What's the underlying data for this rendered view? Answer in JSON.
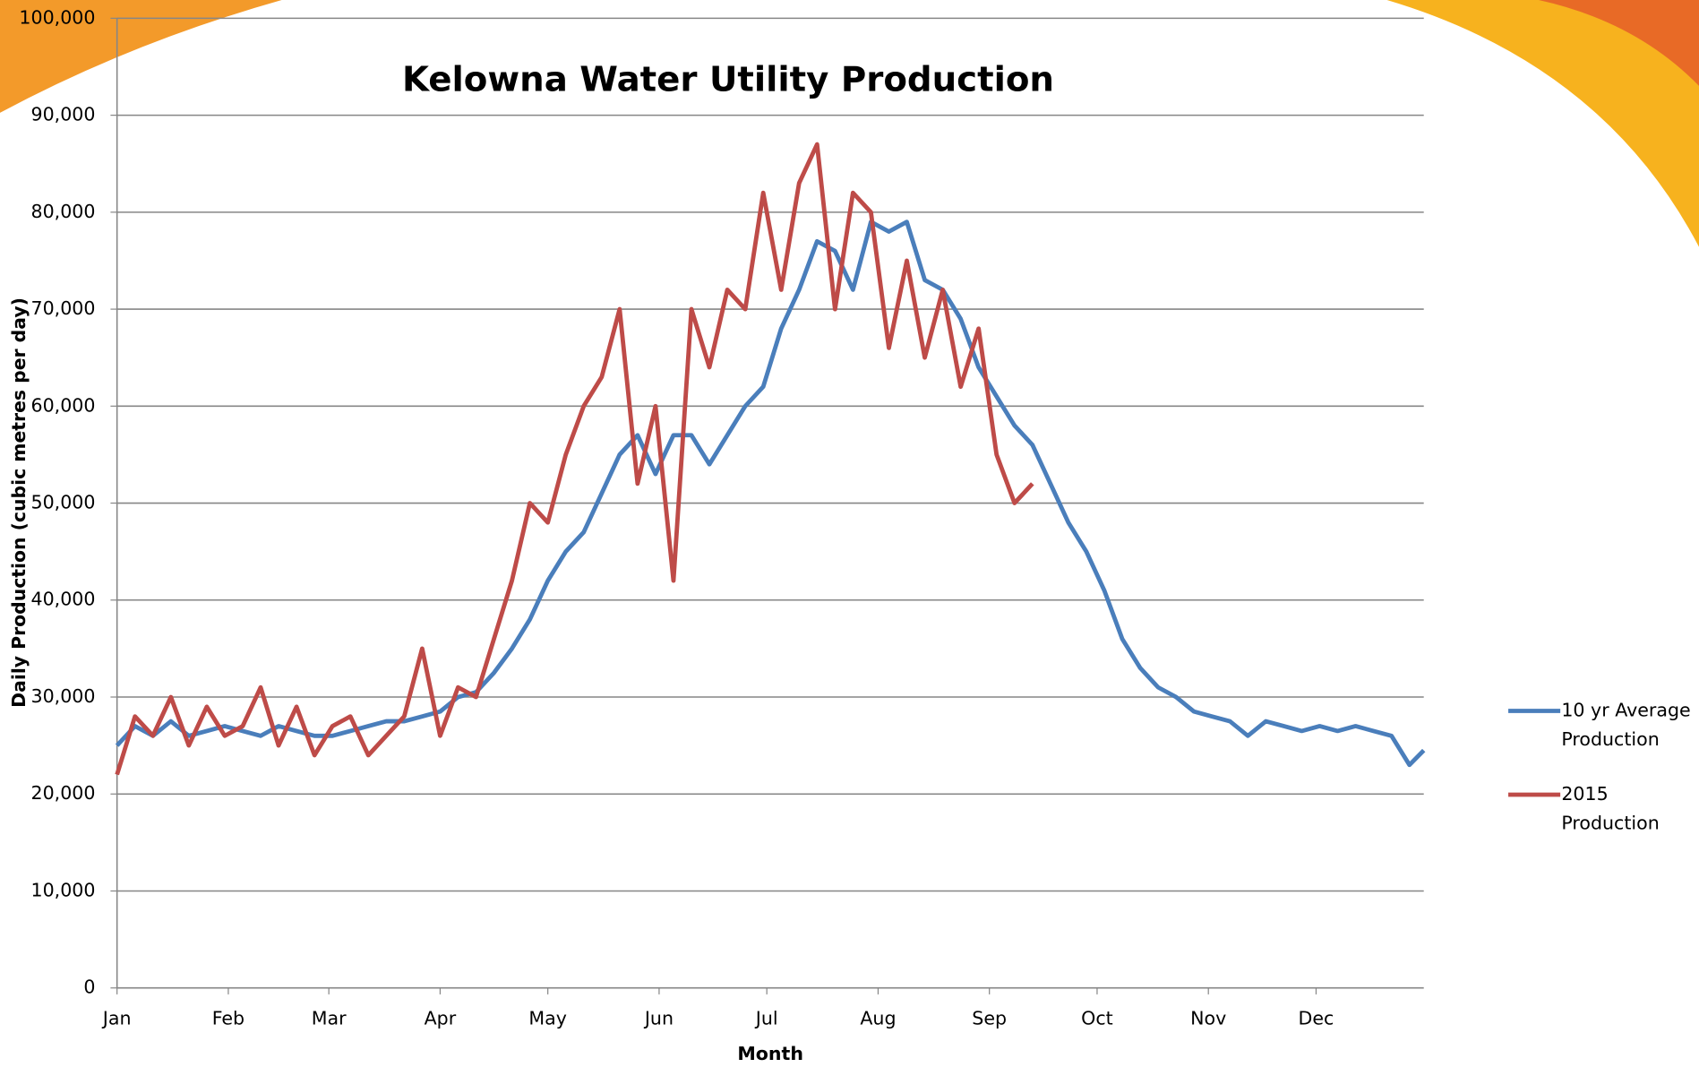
{
  "chart_data": {
    "type": "line",
    "title": "Kelowna Water Utility Production",
    "x_label": "Month",
    "y_label": "Daily Production (cubic metres per day)",
    "xlim": [
      0,
      364
    ],
    "xticks": [
      {
        "value": 0,
        "label": "Jan"
      },
      {
        "value": 31,
        "label": "Feb"
      },
      {
        "value": 59,
        "label": "Mar"
      },
      {
        "value": 90,
        "label": "Apr"
      },
      {
        "value": 120,
        "label": "May"
      },
      {
        "value": 151,
        "label": "Jun"
      },
      {
        "value": 181,
        "label": "Jul"
      },
      {
        "value": 212,
        "label": "Aug"
      },
      {
        "value": 243,
        "label": "Sep"
      },
      {
        "value": 273,
        "label": "Oct"
      },
      {
        "value": 304,
        "label": "Nov"
      },
      {
        "value": 334,
        "label": "Dec"
      }
    ],
    "ylim": [
      0,
      100000
    ],
    "yticks": [
      0,
      {
        "value": 10000,
        "label": "10,000"
      },
      {
        "value": 20000,
        "label": "20,000"
      },
      {
        "value": 30000,
        "label": "30,000"
      },
      {
        "value": 40000,
        "label": "40,000"
      },
      {
        "value": 50000,
        "label": "50,000"
      },
      {
        "value": 60000,
        "label": "60,000"
      },
      {
        "value": 70000,
        "label": "70,000"
      },
      {
        "value": 80000,
        "label": "80,000"
      },
      {
        "value": 90000,
        "label": "90,000"
      },
      {
        "value": 100000,
        "label": "100,000"
      }
    ],
    "grid": true,
    "legend": "right",
    "x": [
      0,
      5,
      10,
      15,
      20,
      25,
      30,
      35,
      40,
      45,
      50,
      55,
      60,
      65,
      70,
      75,
      80,
      85,
      90,
      95,
      100,
      105,
      110,
      115,
      120,
      125,
      130,
      135,
      140,
      145,
      150,
      155,
      160,
      165,
      170,
      175,
      180,
      185,
      190,
      195,
      200,
      205,
      210,
      215,
      220,
      225,
      230,
      235,
      240,
      245,
      250,
      255,
      260,
      265,
      270,
      275,
      280,
      285,
      290,
      295,
      300,
      305,
      310,
      315,
      320,
      325,
      330,
      335,
      340,
      345,
      350,
      355,
      360,
      364
    ],
    "series": [
      {
        "name": "10 yr Average Production",
        "color": "#4a7ebb",
        "values": [
          25000,
          27000,
          26000,
          27500,
          26000,
          26500,
          27000,
          26500,
          26000,
          27000,
          26500,
          26000,
          26000,
          26500,
          27000,
          27500,
          27500,
          28000,
          28500,
          30000,
          30500,
          32500,
          35000,
          38000,
          42000,
          45000,
          47000,
          51000,
          55000,
          57000,
          53000,
          57000,
          57000,
          54000,
          57000,
          60000,
          62000,
          68000,
          72000,
          77000,
          76000,
          72000,
          79000,
          78000,
          79000,
          73000,
          72000,
          69000,
          64000,
          61000,
          58000,
          56000,
          52000,
          48000,
          45000,
          41000,
          36000,
          33000,
          31000,
          30000,
          28500,
          28000,
          27500,
          26000,
          27500,
          27000,
          26500,
          27000,
          26500,
          27000,
          26500,
          26000,
          23000,
          24500
        ]
      },
      {
        "name": "2015 Production",
        "color": "#be4b48",
        "values": [
          22000,
          28000,
          26000,
          30000,
          25000,
          29000,
          26000,
          27000,
          31000,
          25000,
          29000,
          24000,
          27000,
          28000,
          24000,
          26000,
          28000,
          35000,
          26000,
          31000,
          30000,
          36000,
          42000,
          50000,
          48000,
          55000,
          60000,
          63000,
          70000,
          52000,
          60000,
          42000,
          70000,
          64000,
          72000,
          70000,
          82000,
          72000,
          83000,
          87000,
          70000,
          82000,
          80000,
          66000,
          75000,
          65000,
          72000,
          62000,
          68000,
          55000,
          50000,
          52000,
          null,
          null,
          null,
          null,
          null,
          null,
          null,
          null,
          null,
          null,
          null,
          null,
          null,
          null,
          null,
          null,
          null,
          null,
          null,
          null,
          null,
          null
        ]
      }
    ]
  }
}
